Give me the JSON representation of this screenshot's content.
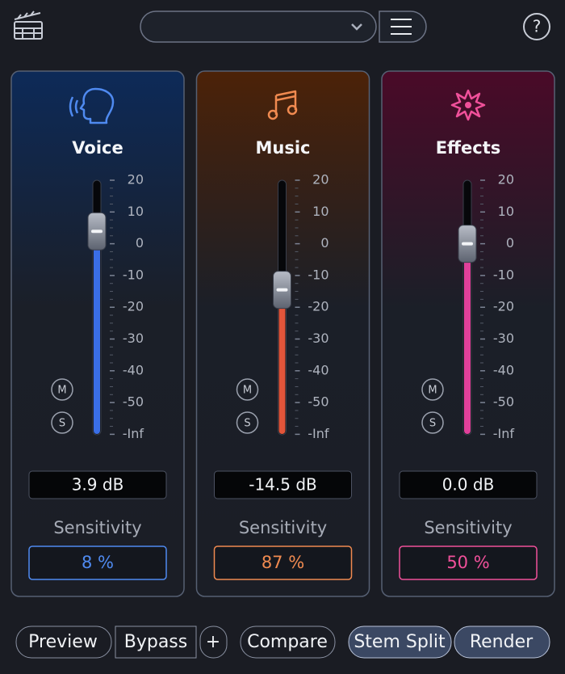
{
  "scale": [
    20,
    10,
    0,
    -10,
    -20,
    -30,
    -40,
    -50,
    "-Inf"
  ],
  "channels": [
    {
      "name": "Voice",
      "color": "#3a6ee6",
      "accent": "#4f8af0",
      "tint": "#0d2a58",
      "gain": {
        "value": 3.9,
        "label": "3.9 dB"
      },
      "mute": "M",
      "solo": "S",
      "sensitivity_title": "Sensitivity",
      "sensitivity": "8 %"
    },
    {
      "name": "Music",
      "color": "#e2553a",
      "accent": "#f08a50",
      "tint": "#4c2208",
      "gain": {
        "value": -14.5,
        "label": "-14.5 dB"
      },
      "mute": "M",
      "solo": "S",
      "sensitivity_title": "Sensitivity",
      "sensitivity": "87 %"
    },
    {
      "name": "Effects",
      "color": "#e0409a",
      "accent": "#f0509a",
      "tint": "#4a0a28",
      "gain": {
        "value": 0.0,
        "label": "0.0 dB"
      },
      "mute": "M",
      "solo": "S",
      "sensitivity_title": "Sensitivity",
      "sensitivity": "50 %"
    }
  ],
  "footer": {
    "preview": "Preview",
    "bypass": "Bypass",
    "add": "+",
    "compare": "Compare",
    "stem_split": "Stem Split",
    "render": "Render"
  },
  "header": {
    "help": "?"
  }
}
